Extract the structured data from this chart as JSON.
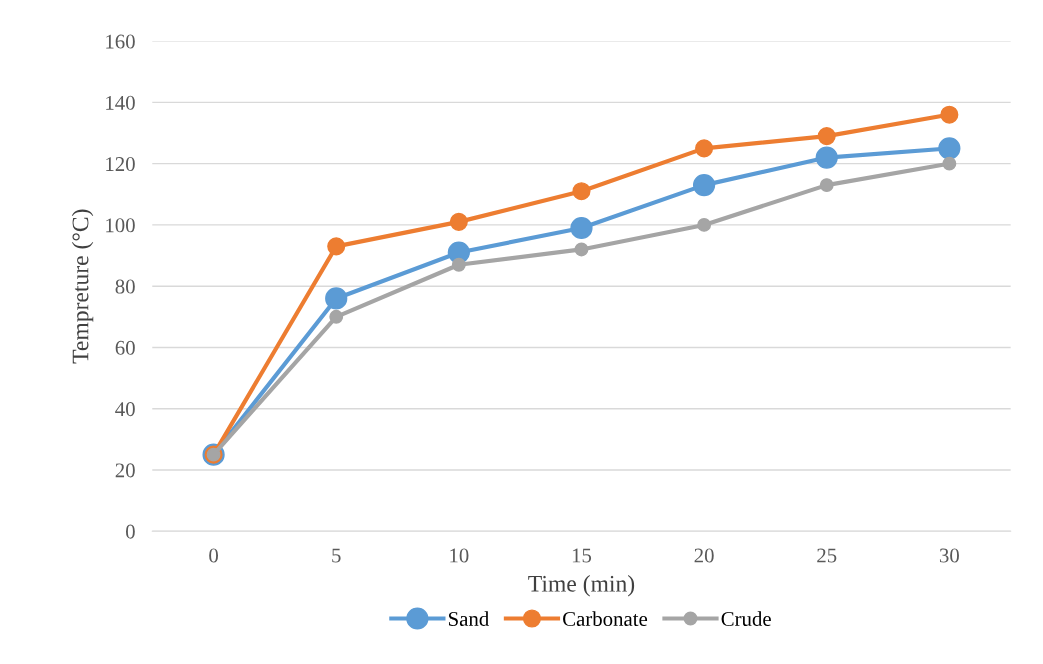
{
  "chart_data": {
    "type": "line",
    "xlabel": "Time (min)",
    "ylabel": "Tempreture (°C)",
    "categories": [
      "0",
      "5",
      "10",
      "15",
      "20",
      "25",
      "30"
    ],
    "series": [
      {
        "name": "Sand",
        "color": "#5b9bd5",
        "values": [
          25,
          76,
          91,
          99,
          113,
          122,
          125
        ]
      },
      {
        "name": "Carbonate",
        "color": "#ed7d31",
        "values": [
          25,
          93,
          101,
          111,
          125,
          129,
          136
        ]
      },
      {
        "name": "Crude",
        "color": "#a5a5a5",
        "values": [
          25,
          70,
          87,
          92,
          100,
          113,
          120
        ]
      }
    ],
    "ylim": [
      0,
      160
    ],
    "yticks": [
      0,
      20,
      40,
      60,
      80,
      100,
      120,
      140,
      160
    ],
    "grid": "y",
    "legend": "bottom",
    "marker": "circle",
    "line_style": "solid"
  }
}
